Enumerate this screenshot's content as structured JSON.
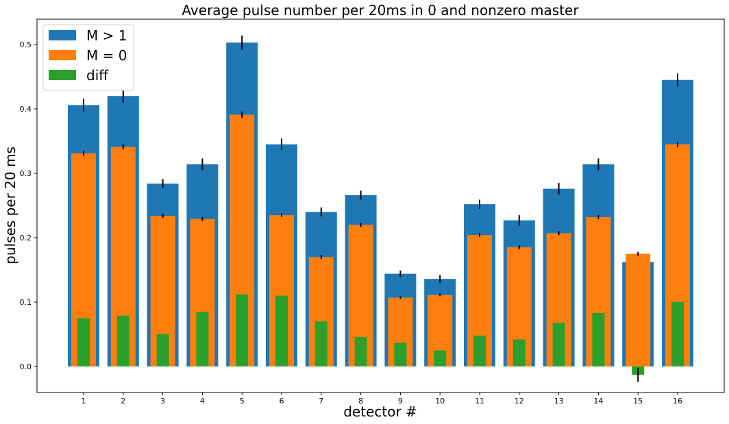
{
  "chart_data": {
    "type": "bar",
    "title": "Average pulse number per 20ms in 0 and nonzero master",
    "xlabel": "detector #",
    "ylabel": "pulses per 20 ms",
    "categories": [
      "1",
      "2",
      "3",
      "4",
      "5",
      "6",
      "7",
      "8",
      "9",
      "10",
      "11",
      "12",
      "13",
      "14",
      "15",
      "16"
    ],
    "ylim": [
      -0.04,
      0.545
    ],
    "yticks": [
      "0.0",
      "0.1",
      "0.2",
      "0.3",
      "0.4",
      "0.5"
    ],
    "legend_position": "top-left",
    "grid": false,
    "series": [
      {
        "name": "M > 1",
        "color": "#1f77b4",
        "values": [
          0.406,
          0.42,
          0.284,
          0.314,
          0.503,
          0.345,
          0.24,
          0.266,
          0.144,
          0.136,
          0.252,
          0.227,
          0.276,
          0.314,
          0.162,
          0.445
        ],
        "errors": [
          0.01,
          0.01,
          0.007,
          0.009,
          0.011,
          0.009,
          0.007,
          0.007,
          0.005,
          0.006,
          0.007,
          0.008,
          0.009,
          0.009,
          0.0,
          0.01
        ]
      },
      {
        "name": "M = 0",
        "color": "#ff7f0e",
        "values": [
          0.331,
          0.341,
          0.234,
          0.229,
          0.391,
          0.235,
          0.17,
          0.22,
          0.107,
          0.111,
          0.204,
          0.185,
          0.207,
          0.232,
          0.175,
          0.345
        ],
        "errors": [
          0.004,
          0.004,
          0.003,
          0.003,
          0.005,
          0.003,
          0.003,
          0.003,
          0.002,
          0.002,
          0.003,
          0.003,
          0.003,
          0.003,
          0.003,
          0.004
        ]
      },
      {
        "name": "diff",
        "color": "#2ca02c",
        "values": [
          0.075,
          0.079,
          0.05,
          0.085,
          0.112,
          0.11,
          0.07,
          0.046,
          0.037,
          0.025,
          0.048,
          0.042,
          0.068,
          0.083,
          -0.013,
          0.1
        ],
        "errors": [
          0,
          0,
          0,
          0,
          0,
          0,
          0,
          0,
          0,
          0,
          0,
          0,
          0,
          0,
          0.011,
          0
        ]
      }
    ]
  }
}
